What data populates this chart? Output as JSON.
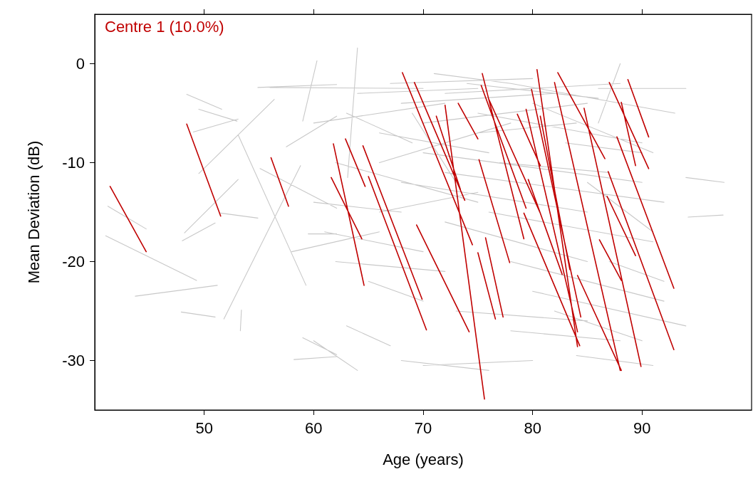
{
  "chart_data": {
    "type": "line",
    "xlabel": "Age (years)",
    "ylabel": "Mean Deviation (dB)",
    "xlim": [
      40,
      100
    ],
    "xticks": [
      50,
      60,
      70,
      80,
      90
    ],
    "ylim": [
      -35,
      5
    ],
    "yticks": [
      -30,
      -20,
      -10,
      0
    ],
    "grid": false,
    "legend": "top left",
    "series": [
      {
        "color": "#c8c8c8",
        "x": [
          41.2,
          44.7,
          null,
          41.0,
          49.3,
          null,
          43.7,
          51.2,
          null,
          47.9,
          51.0,
          null,
          48.4,
          51.6,
          null,
          49.5,
          53.0,
          null,
          49.0,
          53.1,
          null,
          51.8,
          58.8,
          null,
          48.0,
          51.0,
          null,
          48.2,
          53.1,
          null,
          49.5,
          56.4,
          null,
          53.1,
          59.3,
          null,
          51.5,
          54.9,
          null,
          53.4,
          53.3,
          null,
          57.5,
          62.1,
          null,
          54.9,
          62.1,
          null,
          60.3,
          59.0,
          null,
          55.1,
          62.1,
          null,
          59.5,
          62.1,
          null,
          59.0,
          62.1,
          null,
          58.2,
          62.1,
          null,
          64.0,
          63.1,
          null,
          56,
          70,
          null,
          60,
          72,
          null,
          62,
          75,
          null,
          61,
          70,
          null,
          62,
          72,
          null,
          63,
          67,
          null,
          60,
          64,
          null,
          65,
          70,
          null,
          68,
          76,
          null,
          70,
          80,
          null,
          66,
          78,
          null,
          64,
          75,
          null,
          67,
          80,
          null,
          68,
          82,
          null,
          70,
          85,
          null,
          66,
          76,
          null,
          72,
          88,
          null,
          74,
          86,
          null,
          70,
          90,
          null,
          72,
          92,
          null,
          68,
          85,
          null,
          75,
          90,
          null,
          78,
          93,
          null,
          80,
          91,
          null,
          86,
          94,
          null,
          76,
          91,
          null,
          72,
          85,
          null,
          78,
          92,
          null,
          80,
          94,
          null,
          82,
          90,
          null,
          73,
          85,
          null,
          84,
          91,
          null,
          78,
          88,
          null,
          94,
          97.5,
          null,
          94.2,
          97.4,
          null,
          88,
          86,
          null,
          66,
          75,
          null,
          63,
          69,
          null,
          69,
          73,
          null,
          83,
          90,
          null,
          85,
          91,
          null,
          87,
          92,
          null,
          60,
          68,
          null,
          58,
          66,
          null,
          71,
          78,
          null,
          75,
          84,
          null,
          77,
          87
        ],
        "values": [
          -14.4,
          -16.7,
          null,
          -17.4,
          -21.9,
          null,
          -23.5,
          -22.4,
          null,
          -25.1,
          -25.6,
          null,
          -3.1,
          -4.6,
          null,
          -4.6,
          -5.8,
          null,
          -6.9,
          -5.6,
          null,
          -25.8,
          -10.3,
          null,
          -17.9,
          -16.1,
          null,
          -17.1,
          -11.7,
          null,
          -11.1,
          -3.6,
          null,
          -7.2,
          -22.4,
          null,
          -15.1,
          -15.6,
          null,
          -24.9,
          -27.0,
          null,
          -8.4,
          -5.3,
          null,
          -2.4,
          -2.1,
          null,
          0.3,
          -5.8,
          null,
          -10.6,
          -14.6,
          null,
          -17.2,
          -17.2,
          null,
          -27.7,
          -29.4,
          null,
          -29.9,
          -29.6,
          null,
          1.6,
          -11.5,
          null,
          -2.4,
          -2.5,
          null,
          -6,
          -4,
          null,
          -10,
          -14,
          null,
          -17,
          -19,
          null,
          -20,
          -21,
          null,
          -26.5,
          -28.5,
          null,
          -28,
          -31,
          null,
          -22,
          -24,
          null,
          -30,
          -31,
          null,
          -30.5,
          -30,
          null,
          -10,
          -6,
          null,
          -3,
          -2.5,
          null,
          -2,
          -1.5,
          null,
          -4,
          -3,
          null,
          -6,
          -4,
          null,
          -7,
          -9,
          null,
          -3,
          -2,
          null,
          -2,
          -3.5,
          null,
          -9,
          -12,
          null,
          -11,
          -14,
          null,
          -12,
          -15,
          null,
          -5,
          -8,
          null,
          -2,
          -5,
          null,
          -4,
          -9,
          null,
          -2.5,
          -2.5,
          null,
          -15,
          -18,
          null,
          -16,
          -20,
          null,
          -20,
          -24,
          null,
          -23,
          -26.5,
          null,
          -25,
          -28,
          null,
          -25,
          -26,
          null,
          -29.5,
          -30.5,
          null,
          -27,
          -28,
          null,
          -11.5,
          -12,
          null,
          -15.5,
          -15.3,
          null,
          0,
          -6,
          null,
          -15,
          -13,
          null,
          -5,
          -8,
          null,
          -5,
          -12,
          null,
          -8,
          -9,
          null,
          -12,
          -17,
          null,
          -20,
          -22,
          null,
          -14,
          -15,
          null,
          -19,
          -17,
          null,
          -1,
          -2,
          null,
          -7,
          -6,
          null,
          -10,
          -11
        ]
      },
      {
        "name": "Centre 1 (10.0%)",
        "color": "#c00000",
        "x": [
          41.4,
          44.7,
          null,
          48.4,
          51.5,
          null,
          56.1,
          57.7,
          null,
          61.8,
          64.6,
          null,
          61.6,
          64.4,
          null,
          62.9,
          64.7,
          null,
          64.5,
          69.9,
          null,
          65.0,
          70.3,
          null,
          68.1,
          74.5,
          null,
          69.2,
          73.8,
          null,
          69.4,
          74.2,
          null,
          72.0,
          75.6,
          null,
          71.2,
          73.4,
          null,
          73.2,
          75.0,
          null,
          75.1,
          77.9,
          null,
          75.0,
          76.6,
          null,
          75.7,
          77.3,
          null,
          75.4,
          79.2,
          null,
          75.3,
          79.4,
          null,
          76.0,
          80.7,
          null,
          78.6,
          80.7,
          null,
          80.4,
          84.1,
          null,
          82.3,
          86.6,
          null,
          82.0,
          88.0,
          null,
          79.9,
          84.4,
          null,
          79.4,
          84.1,
          null,
          84.7,
          89.9,
          null,
          87.0,
          90.6,
          null,
          88.7,
          90.6,
          null,
          87.7,
          92.9,
          null,
          86.9,
          92.9,
          null,
          88.1,
          89.4,
          null,
          86.1,
          88.1,
          null,
          84.1,
          88.1,
          null,
          79.6,
          82.7,
          null,
          79.2,
          84.3,
          null,
          86.8,
          89.4,
          null,
          80.7,
          83.4
        ],
        "values": [
          -12.4,
          -19.0,
          null,
          -6.1,
          -15.4,
          null,
          -9.5,
          -14.4,
          null,
          -8.1,
          -22.4,
          null,
          -11.5,
          -17.7,
          null,
          -7.6,
          -12.4,
          null,
          -8.3,
          -23.8,
          null,
          -11.4,
          -26.9,
          null,
          -0.9,
          -18.3,
          null,
          -1.9,
          -13.8,
          null,
          -16.3,
          -27.1,
          null,
          -4.2,
          -33.9,
          null,
          -5.3,
          -12.7,
          null,
          -4.0,
          -7.6,
          null,
          -9.7,
          -20.1,
          null,
          -19.1,
          -25.8,
          null,
          -17.6,
          -25.6,
          null,
          -1.0,
          -17.7,
          null,
          -2.2,
          -14.6,
          null,
          -3.6,
          -15.1,
          null,
          -5.1,
          -10.3,
          null,
          -0.6,
          -28.6,
          null,
          -0.9,
          -9.6,
          null,
          -1.9,
          -31.0,
          null,
          -2.6,
          -25.6,
          null,
          -4.6,
          -27.1,
          null,
          -4.5,
          -30.6,
          null,
          -1.9,
          -10.6,
          null,
          -1.6,
          -7.4,
          null,
          -7.4,
          -22.7,
          null,
          -10.9,
          -28.9,
          null,
          -3.9,
          -10.3,
          null,
          -17.8,
          -21.9,
          null,
          -21.4,
          -31.0,
          null,
          -11.7,
          -21.3,
          null,
          -15.1,
          -28.5,
          null,
          -13.4,
          -19.4,
          null,
          -5.3,
          -20.8
        ]
      }
    ]
  }
}
